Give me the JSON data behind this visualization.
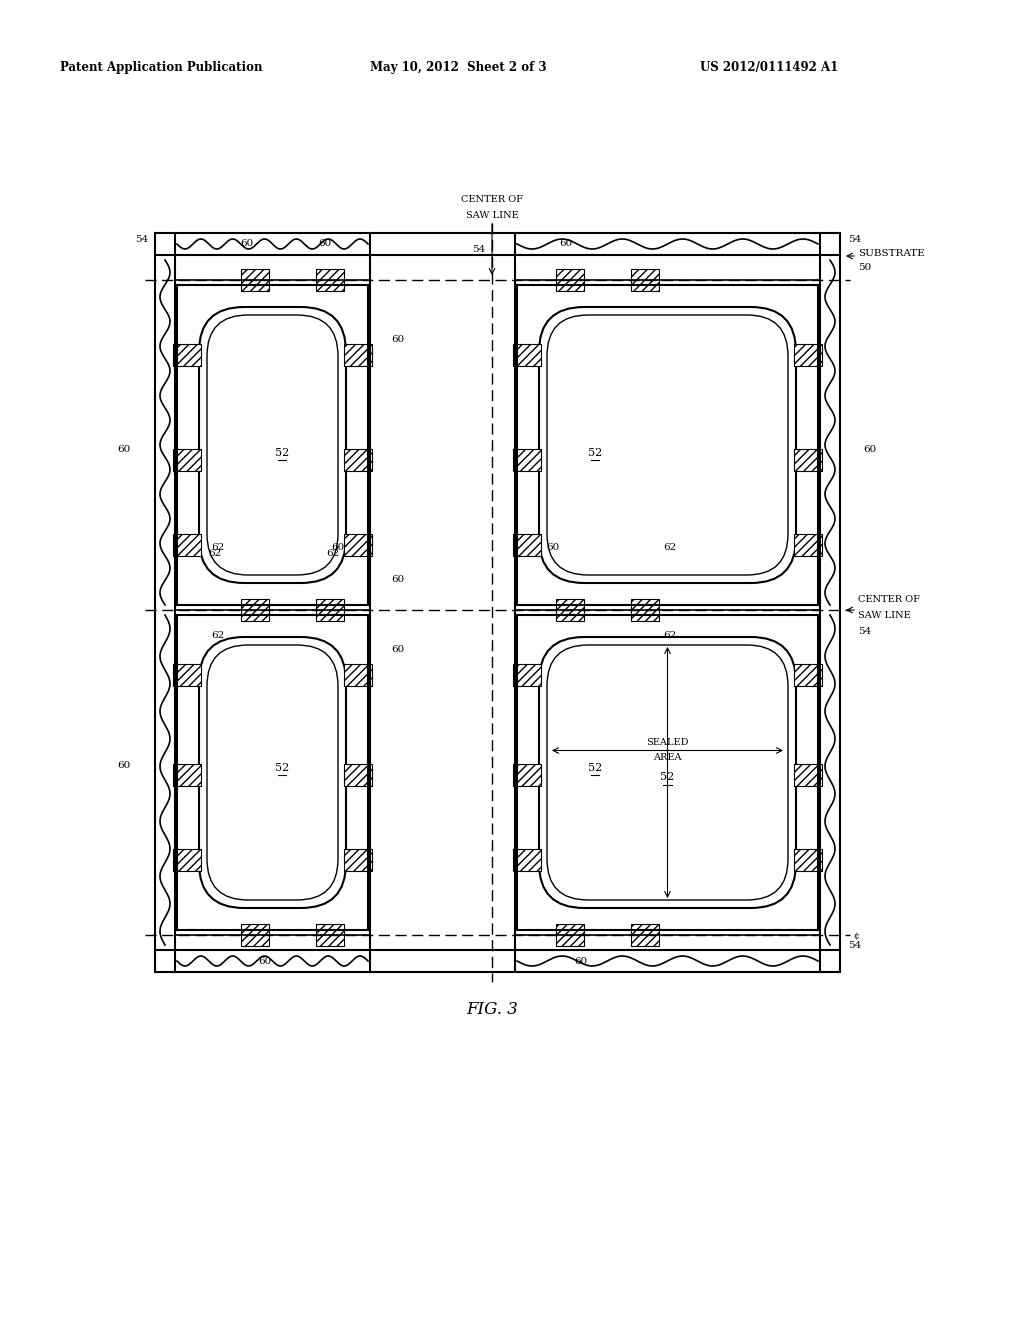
{
  "header_left": "Patent Application Publication",
  "header_mid": "May 10, 2012  Sheet 2 of 3",
  "header_right": "US 2012/0111492 A1",
  "fig_label": "FIG. 3",
  "bg_color": "#ffffff",
  "line_color": "#000000"
}
